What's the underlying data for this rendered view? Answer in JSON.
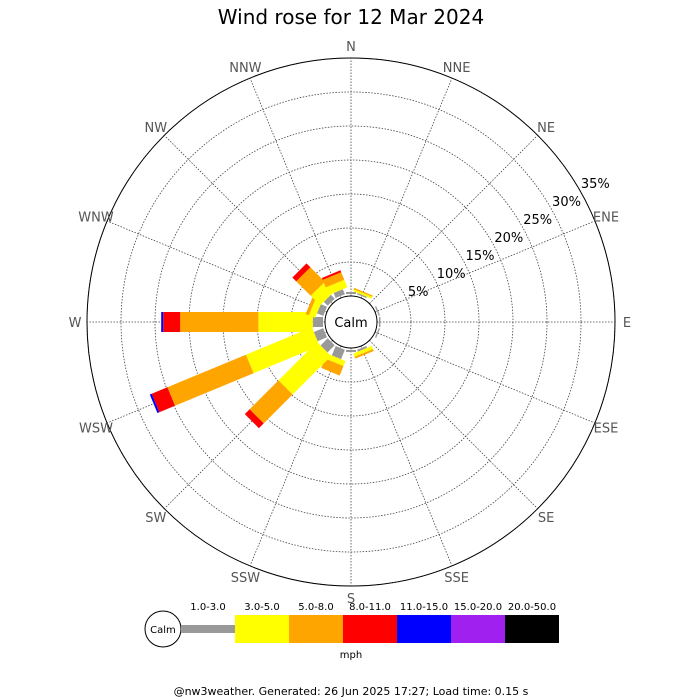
{
  "chart_data": {
    "type": "windrose",
    "title": "Wind rose for 12 Mar 2024",
    "calm_label": "Calm",
    "directions": [
      "N",
      "NNE",
      "NE",
      "ENE",
      "E",
      "ESE",
      "SE",
      "SSE",
      "S",
      "SSW",
      "SW",
      "WSW",
      "W",
      "WNW",
      "NW",
      "NNW"
    ],
    "radial_ticks": [
      5,
      10,
      15,
      20,
      25,
      30,
      35
    ],
    "radial_tick_labels": [
      "5%",
      "10%",
      "15%",
      "20%",
      "25%",
      "30%",
      "35%"
    ],
    "max_percent": 35,
    "unit": "mph",
    "speed_bins": [
      {
        "label": "1.0-3.0",
        "color": "#999999"
      },
      {
        "label": "3.0-5.0",
        "color": "#ffff00"
      },
      {
        "label": "5.0-8.0",
        "color": "#ffa500"
      },
      {
        "label": "8.0-11.0",
        "color": "#ff0000"
      },
      {
        "label": "11.0-15.0",
        "color": "#0000ff"
      },
      {
        "label": "15.0-20.0",
        "color": "#a020f0"
      },
      {
        "label": "20.0-50.0",
        "color": "#000000"
      }
    ],
    "series": [
      {
        "direction": "N",
        "values": [
          0.3,
          0,
          0,
          0,
          0,
          0,
          0
        ]
      },
      {
        "direction": "NNE",
        "values": [
          0.2,
          0.3,
          0.2,
          0,
          0,
          0,
          0
        ]
      },
      {
        "direction": "ENE",
        "values": [
          0.2,
          0,
          0,
          0,
          0,
          0,
          0
        ]
      },
      {
        "direction": "E",
        "values": [
          0.2,
          0,
          0,
          0,
          0,
          0,
          0
        ]
      },
      {
        "direction": "ESE",
        "values": [
          0.2,
          0,
          0,
          0,
          0,
          0,
          0
        ]
      },
      {
        "direction": "SSE",
        "values": [
          0.3,
          0.5,
          0.3,
          0,
          0,
          0,
          0
        ]
      },
      {
        "direction": "S",
        "values": [
          0.3,
          0,
          0,
          0,
          0,
          0,
          0
        ]
      },
      {
        "direction": "SSW",
        "values": [
          1.5,
          0.8,
          1.5,
          0,
          0,
          0,
          0
        ]
      },
      {
        "direction": "SW",
        "values": [
          1.5,
          8.0,
          6.0,
          1.0,
          0,
          0,
          0
        ]
      },
      {
        "direction": "WSW",
        "values": [
          1.5,
          10.5,
          12.5,
          2.5,
          0.3,
          0,
          0
        ]
      },
      {
        "direction": "W",
        "values": [
          1.5,
          8.0,
          11.5,
          2.5,
          0.3,
          0,
          0
        ]
      },
      {
        "direction": "WNW",
        "values": [
          1.0,
          1.0,
          0.5,
          0,
          0,
          0,
          0
        ]
      },
      {
        "direction": "NW",
        "values": [
          0.8,
          2.0,
          3.0,
          0.8,
          0,
          0,
          0
        ]
      },
      {
        "direction": "NNW",
        "values": [
          0.8,
          1.2,
          1.2,
          0.3,
          0,
          0,
          0
        ]
      }
    ]
  },
  "footer": "@nw3weather. Generated: 26 Jun 2025 17:27; Load time: 0.15 s"
}
